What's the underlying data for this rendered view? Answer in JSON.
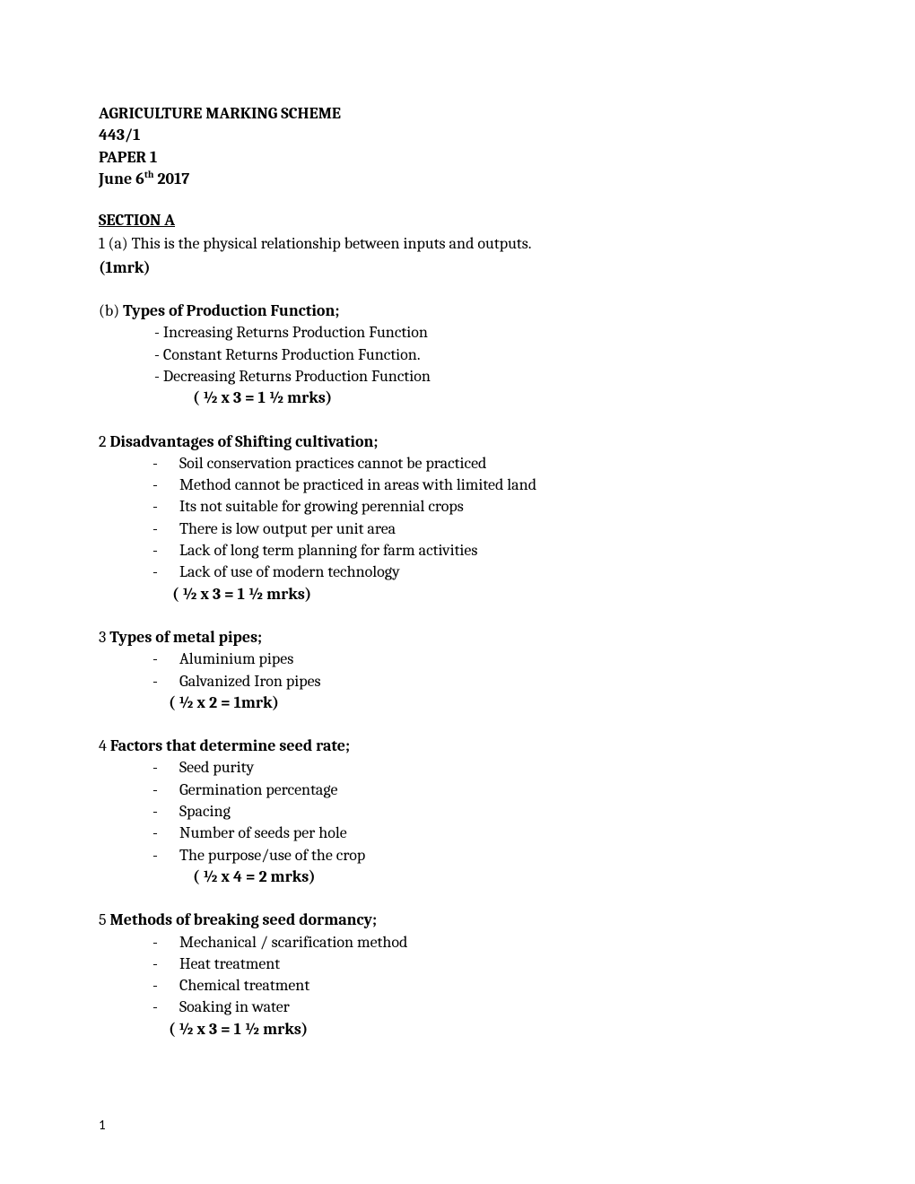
{
  "header": {
    "line1": "AGRICULTURE MARKING SCHEME",
    "line2": "443/1",
    "line3": "PAPER 1",
    "line4_prefix": "June  6",
    "line4_sup": "th",
    "line4_suffix": "  2017"
  },
  "section_title": "SECTION A",
  "q1a": {
    "text": "1 (a) This is the physical relationship between inputs and outputs.",
    "marks": "(1mrk)"
  },
  "q1b": {
    "prefix": "  (b) ",
    "heading": "Types of Production Function;",
    "items": [
      "- Increasing Returns Production Function",
      "- Constant Returns Production Function.",
      "- Decreasing Returns Production Function"
    ],
    "marks": "( ½  x 3 = 1 ½ mrks)"
  },
  "q2": {
    "prefix": "2 ",
    "heading": "Disadvantages of Shifting cultivation;",
    "items": [
      "Soil conservation practices cannot be practiced",
      "Method cannot be practiced in areas with limited land",
      "Its not suitable for growing perennial crops",
      "There is low output per unit area",
      "Lack of long term planning for farm activities",
      "Lack of use of modern technology"
    ],
    "marks": "( ½  x 3 = 1 ½ mrks)"
  },
  "q3": {
    "prefix": "3 ",
    "heading": "Types of metal pipes;",
    "items": [
      "Aluminium pipes",
      "Galvanized Iron pipes"
    ],
    "marks": "( ½ x 2 = 1mrk)"
  },
  "q4": {
    "prefix": "4 ",
    "heading": "Factors that determine seed rate;",
    "items": [
      "Seed purity",
      "Germination percentage",
      "Spacing",
      "Number of seeds per hole",
      "The purpose/use of the crop"
    ],
    "marks": "( ½ x 4 = 2 mrks)"
  },
  "q5": {
    "prefix": "5 ",
    "heading": "Methods of breaking seed dormancy;",
    "items": [
      "Mechanical / scarification method",
      "Heat treatment",
      "Chemical treatment",
      "Soaking in water"
    ],
    "marks": "( ½ x 3 = 1 ½ mrks)"
  },
  "page_number": "1"
}
